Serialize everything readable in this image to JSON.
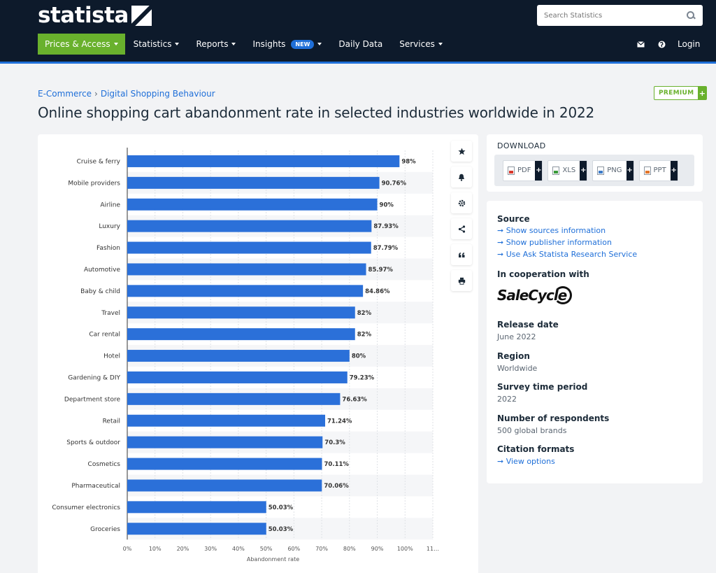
{
  "header": {
    "logo_text": "statista",
    "search_placeholder": "Search Statistics",
    "nav": [
      {
        "label": "Prices & Access"
      },
      {
        "label": "Statistics"
      },
      {
        "label": "Reports"
      },
      {
        "label": "Insights"
      },
      {
        "label": "Daily Data"
      },
      {
        "label": "Services"
      }
    ],
    "new_badge": "NEW",
    "login": "Login"
  },
  "breadcrumb": {
    "first": "E-Commerce",
    "separator": "›",
    "second": "Digital Shopping Behaviour"
  },
  "premium_label": "PREMIUM",
  "premium_plus": "+",
  "page_title": "Online shopping cart abandonment rate in selected industries worldwide in 2022",
  "chart_data": {
    "type": "bar",
    "orientation": "horizontal",
    "categories": [
      "Cruise & ferry",
      "Mobile providers",
      "Airline",
      "Luxury",
      "Fashion",
      "Automotive",
      "Baby & child",
      "Travel",
      "Car rental",
      "Hotel",
      "Gardening & DIY",
      "Department store",
      "Retail",
      "Sports & outdoor",
      "Cosmetics",
      "Pharmaceutical",
      "Consumer electronics",
      "Groceries"
    ],
    "values": [
      98,
      90.76,
      90,
      87.93,
      87.79,
      85.97,
      84.86,
      82,
      82,
      80,
      79.23,
      76.63,
      71.24,
      70.3,
      70.11,
      70.06,
      50.03,
      50.03
    ],
    "value_labels": [
      "98%",
      "90.76%",
      "90%",
      "87.93%",
      "87.79%",
      "85.97%",
      "84.86%",
      "82%",
      "82%",
      "80%",
      "79.23%",
      "76.63%",
      "71.24%",
      "70.3%",
      "70.11%",
      "70.06%",
      "50.03%",
      "50.03%"
    ],
    "xlabel": "Abandonment rate",
    "ylabel": "",
    "xlim": [
      0,
      110
    ],
    "x_ticks": [
      "0%",
      "10%",
      "20%",
      "30%",
      "40%",
      "50%",
      "60%",
      "70%",
      "80%",
      "90%",
      "100%",
      "11…"
    ],
    "bar_color": "#2b70d9",
    "grid": true
  },
  "download": {
    "title": "DOWNLOAD",
    "buttons": [
      {
        "label": "PDF",
        "icon": "pdf-file-icon"
      },
      {
        "label": "XLS",
        "icon": "xls-file-icon"
      },
      {
        "label": "PNG",
        "icon": "png-file-icon"
      },
      {
        "label": "PPT",
        "icon": "ppt-file-icon"
      }
    ],
    "plus": "+"
  },
  "info": {
    "source_head": "Source",
    "source_links": [
      "Show sources information",
      "Show publisher information",
      "Use Ask Statista Research Service"
    ],
    "coop_head": "In cooperation with",
    "coop_logo": "SaleCycle",
    "release_head": "Release date",
    "release_val": "June 2022",
    "region_head": "Region",
    "region_val": "Worldwide",
    "survey_head": "Survey time period",
    "survey_val": "2022",
    "respondents_head": "Number of respondents",
    "respondents_val": "500 global brands",
    "citation_head": "Citation formats",
    "citation_link": "View options"
  },
  "colors": {
    "header_bg": "#0d1a2b",
    "accent_green": "#69b12d",
    "link_blue": "#1f6fd8"
  }
}
